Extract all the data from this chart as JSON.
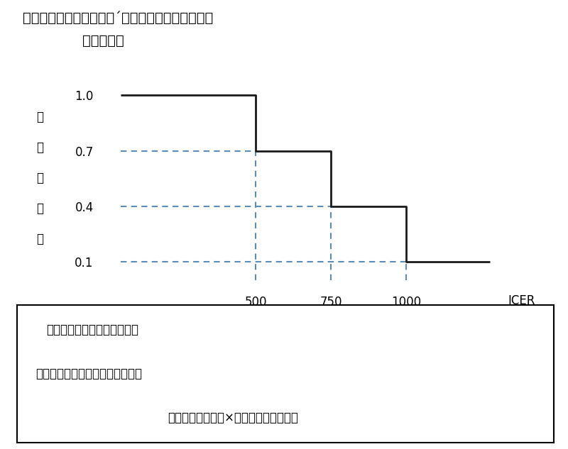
{
  "title_line1": "図３　価格調整の仕組み´）（有用性系加算等の価",
  "title_line2": "格調整率）",
  "ylabel_chars": [
    "価",
    "格",
    "調",
    "整",
    "率"
  ],
  "xlabel": "ICER",
  "step_x": [
    50,
    500,
    500,
    750,
    750,
    1000,
    1000,
    1280
  ],
  "step_y": [
    1.0,
    1.0,
    0.7,
    0.7,
    0.4,
    0.4,
    0.1,
    0.1
  ],
  "dashed_lines": [
    {
      "x": [
        500,
        500
      ],
      "y": [
        0,
        0.7
      ]
    },
    {
      "x": [
        50,
        500
      ],
      "y": [
        0.7,
        0.7
      ]
    },
    {
      "x": [
        750,
        750
      ],
      "y": [
        0,
        0.4
      ]
    },
    {
      "x": [
        50,
        750
      ],
      "y": [
        0.4,
        0.4
      ]
    },
    {
      "x": [
        1000,
        1000
      ],
      "y": [
        0,
        0.1
      ]
    },
    {
      "x": [
        50,
        1000
      ],
      "y": [
        0.1,
        0.1
      ]
    }
  ],
  "yticks": [
    0.1,
    0.4,
    0.7,
    1.0
  ],
  "xticks": [
    500,
    750,
    1000
  ],
  "step_color": "#1a1a1a",
  "dashed_color": "#5B8DB8",
  "box_text_line1": "価格調整後の有用性系加算等",
  "box_text_line2": "＝　価格調整前の有用性系加算等",
  "box_text_line3": "－有用性系加算等×（１－価格調整率）",
  "fig_width": 8.0,
  "fig_height": 6.33,
  "background_color": "#ffffff"
}
